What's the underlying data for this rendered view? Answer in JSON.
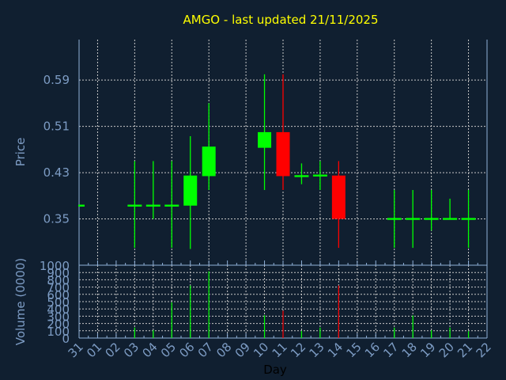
{
  "chart_data": [
    {
      "type": "candlestick",
      "title": "AMGO - last updated 21/11/2025",
      "ylabel": "Price",
      "ylim": [
        0.27,
        0.66
      ],
      "yticks": [
        "0.35",
        "0.43",
        "0.51",
        "0.59"
      ],
      "ytick_values": [
        0.35,
        0.43,
        0.51,
        0.59
      ],
      "grid": true,
      "up_color": "#00ff00",
      "down_color": "#ff0000",
      "candles": [
        {
          "day": "31",
          "open": 0.373,
          "high": 0.373,
          "low": 0.373,
          "close": 0.373
        },
        {
          "day": "03",
          "open": 0.373,
          "high": 0.45,
          "low": 0.3,
          "close": 0.373
        },
        {
          "day": "04",
          "open": 0.373,
          "high": 0.45,
          "low": 0.35,
          "close": 0.373
        },
        {
          "day": "05",
          "open": 0.373,
          "high": 0.45,
          "low": 0.3,
          "close": 0.373
        },
        {
          "day": "06",
          "open": 0.373,
          "high": 0.493,
          "low": 0.298,
          "close": 0.425
        },
        {
          "day": "07",
          "open": 0.424,
          "high": 0.55,
          "low": 0.4,
          "close": 0.475
        },
        {
          "day": "10",
          "open": 0.473,
          "high": 0.6,
          "low": 0.4,
          "close": 0.5
        },
        {
          "day": "11",
          "open": 0.5,
          "high": 0.6,
          "low": 0.4,
          "close": 0.424
        },
        {
          "day": "12",
          "open": 0.424,
          "high": 0.446,
          "low": 0.41,
          "close": 0.424
        },
        {
          "day": "13",
          "open": 0.425,
          "high": 0.45,
          "low": 0.4,
          "close": 0.425
        },
        {
          "day": "14",
          "open": 0.425,
          "high": 0.45,
          "low": 0.3,
          "close": 0.35
        },
        {
          "day": "17",
          "open": 0.35,
          "high": 0.4,
          "low": 0.3,
          "close": 0.35
        },
        {
          "day": "18",
          "open": 0.35,
          "high": 0.4,
          "low": 0.3,
          "close": 0.35
        },
        {
          "day": "19",
          "open": 0.35,
          "high": 0.4,
          "low": 0.33,
          "close": 0.35
        },
        {
          "day": "20",
          "open": 0.35,
          "high": 0.385,
          "low": 0.35,
          "close": 0.35
        },
        {
          "day": "21",
          "open": 0.35,
          "high": 0.4,
          "low": 0.3,
          "close": 0.35
        }
      ]
    },
    {
      "type": "bar",
      "ylabel": "Volume (0000)",
      "xlabel": "Day",
      "ylim": [
        0,
        1000
      ],
      "yticks": [
        "0",
        "100",
        "200",
        "300",
        "400",
        "500",
        "600",
        "700",
        "800",
        "900",
        "1000"
      ],
      "categories": [
        "31",
        "01",
        "02",
        "03",
        "04",
        "05",
        "06",
        "07",
        "08",
        "09",
        "10",
        "11",
        "12",
        "13",
        "14",
        "15",
        "16",
        "17",
        "18",
        "19",
        "20",
        "21",
        "22"
      ],
      "bars": [
        {
          "day": "03",
          "value": 145,
          "color": "#00ff00"
        },
        {
          "day": "04",
          "value": 108,
          "color": "#00ff00"
        },
        {
          "day": "05",
          "value": 490,
          "color": "#00ff00"
        },
        {
          "day": "06",
          "value": 722,
          "color": "#00ff00"
        },
        {
          "day": "07",
          "value": 917,
          "color": "#00ff00"
        },
        {
          "day": "10",
          "value": 314,
          "color": "#00ff00"
        },
        {
          "day": "11",
          "value": 375,
          "color": "#ff0000"
        },
        {
          "day": "12",
          "value": 97,
          "color": "#00ff00"
        },
        {
          "day": "13",
          "value": 144,
          "color": "#00ff00"
        },
        {
          "day": "14",
          "value": 722,
          "color": "#ff0000"
        },
        {
          "day": "17",
          "value": 144,
          "color": "#00ff00"
        },
        {
          "day": "18",
          "value": 310,
          "color": "#00ff00"
        },
        {
          "day": "19",
          "value": 108,
          "color": "#00ff00"
        },
        {
          "day": "20",
          "value": 144,
          "color": "#00ff00"
        },
        {
          "day": "21",
          "value": 94,
          "color": "#00ff00"
        }
      ]
    }
  ]
}
